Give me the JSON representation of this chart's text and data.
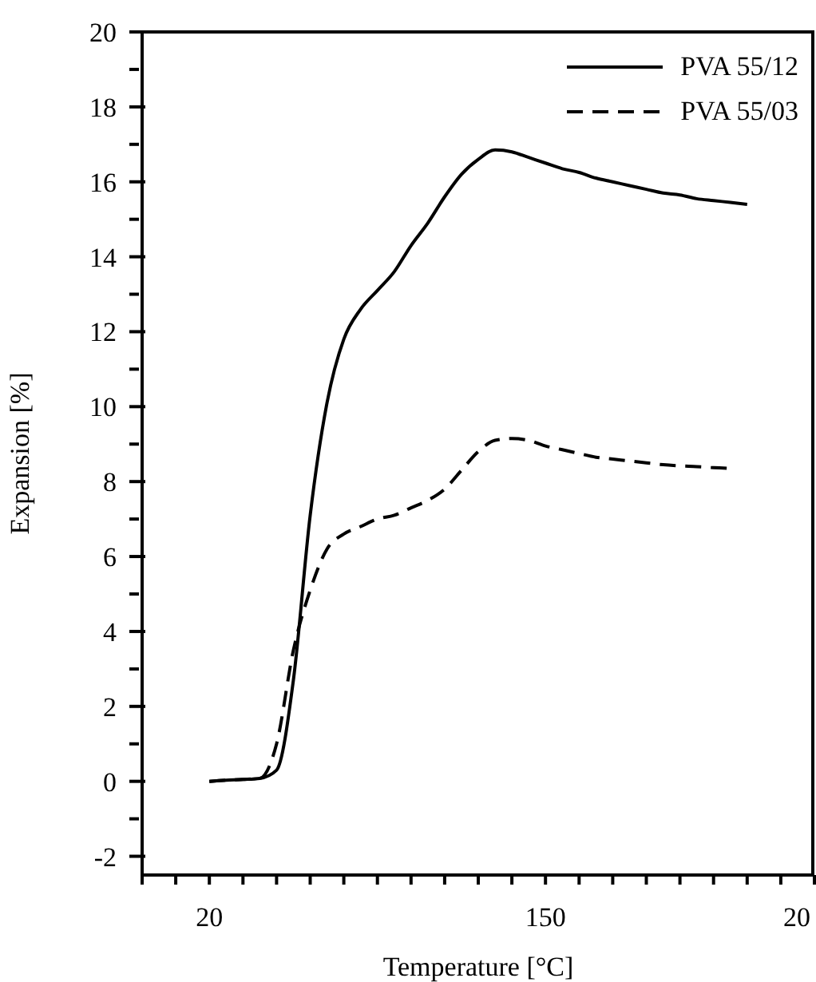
{
  "chart_data": {
    "type": "line",
    "xlabel": "Temperature [°C]",
    "ylabel": "Expansion [%]",
    "categories": [
      null,
      null,
      null,
      null,
      "20",
      null,
      null,
      null,
      null,
      null,
      null,
      null,
      null,
      null,
      null,
      null,
      null,
      null,
      null,
      null,
      null,
      null,
      null,
      null,
      "150",
      null,
      null,
      null,
      null,
      null,
      null,
      null,
      null,
      null,
      null,
      null,
      null,
      null,
      null,
      null,
      "20"
    ],
    "ylim": [
      -2.5,
      20
    ],
    "yticks": [
      -2,
      {
        "value": -1,
        "label": null
      },
      0,
      {
        "value": 1,
        "label": null
      },
      2,
      {
        "value": 3,
        "label": null
      },
      4,
      {
        "value": 5,
        "label": null
      },
      6,
      {
        "value": 7,
        "label": null
      },
      8,
      {
        "value": 9,
        "label": null
      },
      10,
      {
        "value": 11,
        "label": null
      },
      12,
      {
        "value": 13,
        "label": null
      },
      14,
      {
        "value": 15,
        "label": null
      },
      16,
      {
        "value": 17,
        "label": null
      },
      18,
      {
        "value": 19,
        "label": null
      },
      20
    ],
    "grid": false,
    "legend": "top right",
    "marker": "none",
    "series": [
      {
        "name": "PVA 55/12",
        "color": "#000000",
        "line_style": "solid",
        "values": [
          null,
          null,
          null,
          null,
          0,
          0.03,
          0.05,
          0.08,
          0.3,
          2.7,
          7.1,
          10.1,
          11.8,
          12.6,
          13.1,
          13.6,
          14.3,
          14.9,
          15.6,
          16.2,
          16.6,
          16.85,
          16.8,
          16.65,
          16.5,
          16.35,
          16.25,
          16.1,
          16.0,
          15.9,
          15.8,
          15.7,
          15.65,
          15.55,
          15.5,
          15.45,
          15.4,
          null,
          null,
          null,
          null
        ]
      },
      {
        "name": "PVA 55/03",
        "color": "#000000",
        "line_style": "dashed",
        "values": [
          null,
          null,
          null,
          null,
          0,
          0.03,
          0.05,
          0.08,
          1.0,
          3.5,
          5.1,
          6.2,
          6.6,
          6.8,
          7.0,
          7.1,
          7.3,
          7.5,
          7.8,
          8.3,
          8.8,
          9.1,
          9.15,
          9.1,
          8.95,
          8.85,
          8.75,
          8.65,
          8.6,
          8.55,
          8.5,
          8.45,
          8.42,
          8.4,
          8.37,
          8.35,
          null,
          null,
          null,
          null,
          null
        ]
      }
    ]
  }
}
